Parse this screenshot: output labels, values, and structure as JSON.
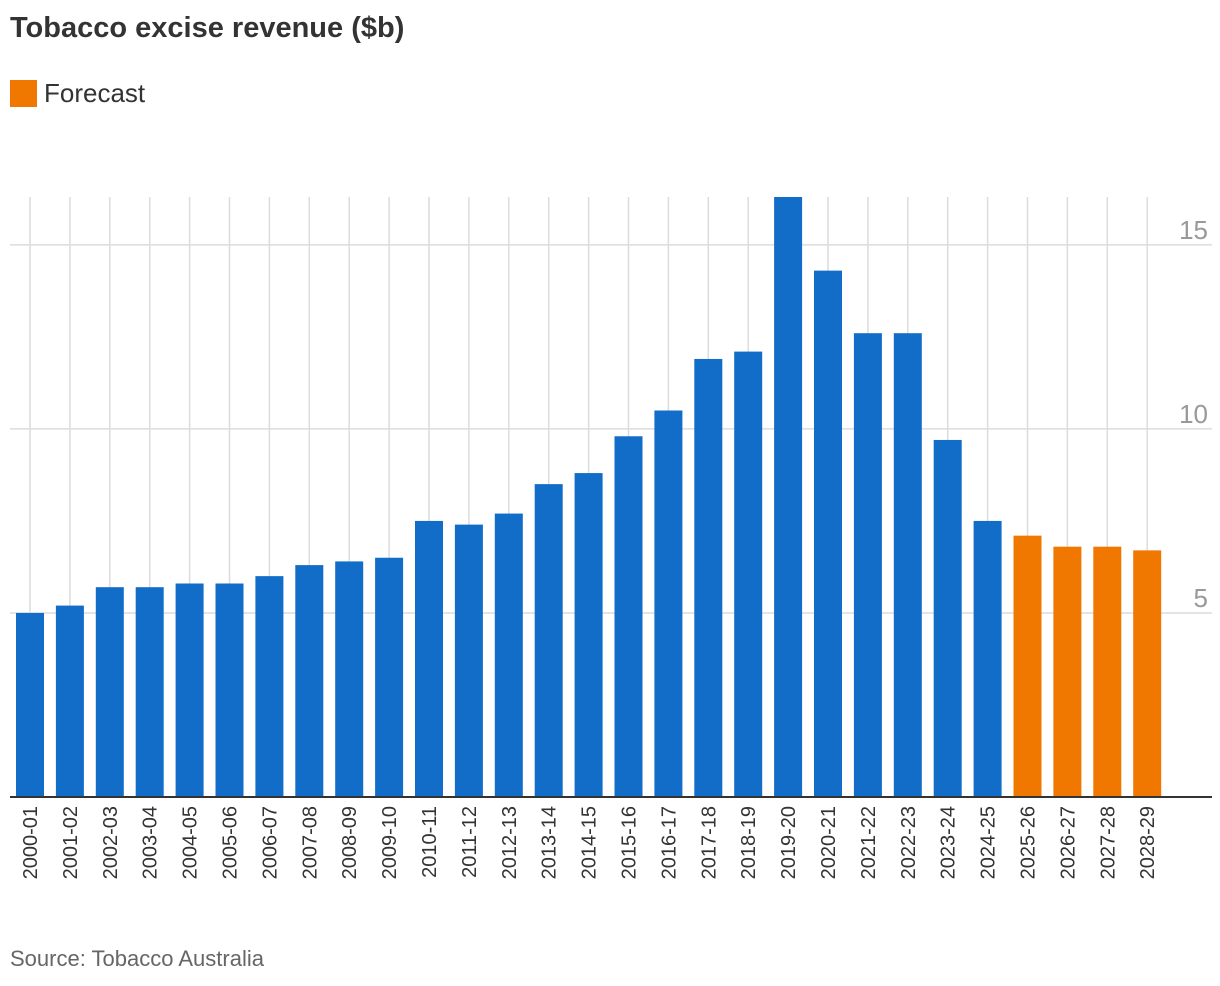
{
  "chart_data": {
    "type": "bar",
    "title": "Tobacco excise revenue ($b)",
    "xlabel": "",
    "ylabel": "",
    "categories": [
      "2000-01",
      "2001-02",
      "2002-03",
      "2003-04",
      "2004-05",
      "2005-06",
      "2006-07",
      "2007-08",
      "2008-09",
      "2009-10",
      "2010-11",
      "2011-12",
      "2012-13",
      "2013-14",
      "2014-15",
      "2015-16",
      "2016-17",
      "2017-18",
      "2018-19",
      "2019-20",
      "2020-21",
      "2021-22",
      "2022-23",
      "2023-24",
      "2024-25",
      "2025-26",
      "2026-27",
      "2027-28",
      "2028-29"
    ],
    "values": [
      5.0,
      5.2,
      5.7,
      5.7,
      5.8,
      5.8,
      6.0,
      6.3,
      6.4,
      6.5,
      7.5,
      7.4,
      7.7,
      8.5,
      8.8,
      9.8,
      10.5,
      11.9,
      12.1,
      16.3,
      14.3,
      12.6,
      12.6,
      9.7,
      7.5,
      7.1,
      6.8,
      6.8,
      6.7
    ],
    "forecast": [
      false,
      false,
      false,
      false,
      false,
      false,
      false,
      false,
      false,
      false,
      false,
      false,
      false,
      false,
      false,
      false,
      false,
      false,
      false,
      false,
      false,
      false,
      false,
      false,
      false,
      true,
      true,
      true,
      true
    ],
    "yticks": [
      5,
      10,
      15
    ],
    "ylim": [
      0,
      16.3
    ],
    "y_axis_side": "right",
    "grid": true,
    "legend": {
      "label": "Forecast",
      "position": "top-left"
    },
    "colors": {
      "actual": "#116dc8",
      "forecast": "#f07800",
      "grid": "#dcdcdc",
      "axis": "#333333",
      "tick_label": "#999999",
      "category_label": "#333333"
    }
  },
  "source": "Source: Tobacco Australia"
}
